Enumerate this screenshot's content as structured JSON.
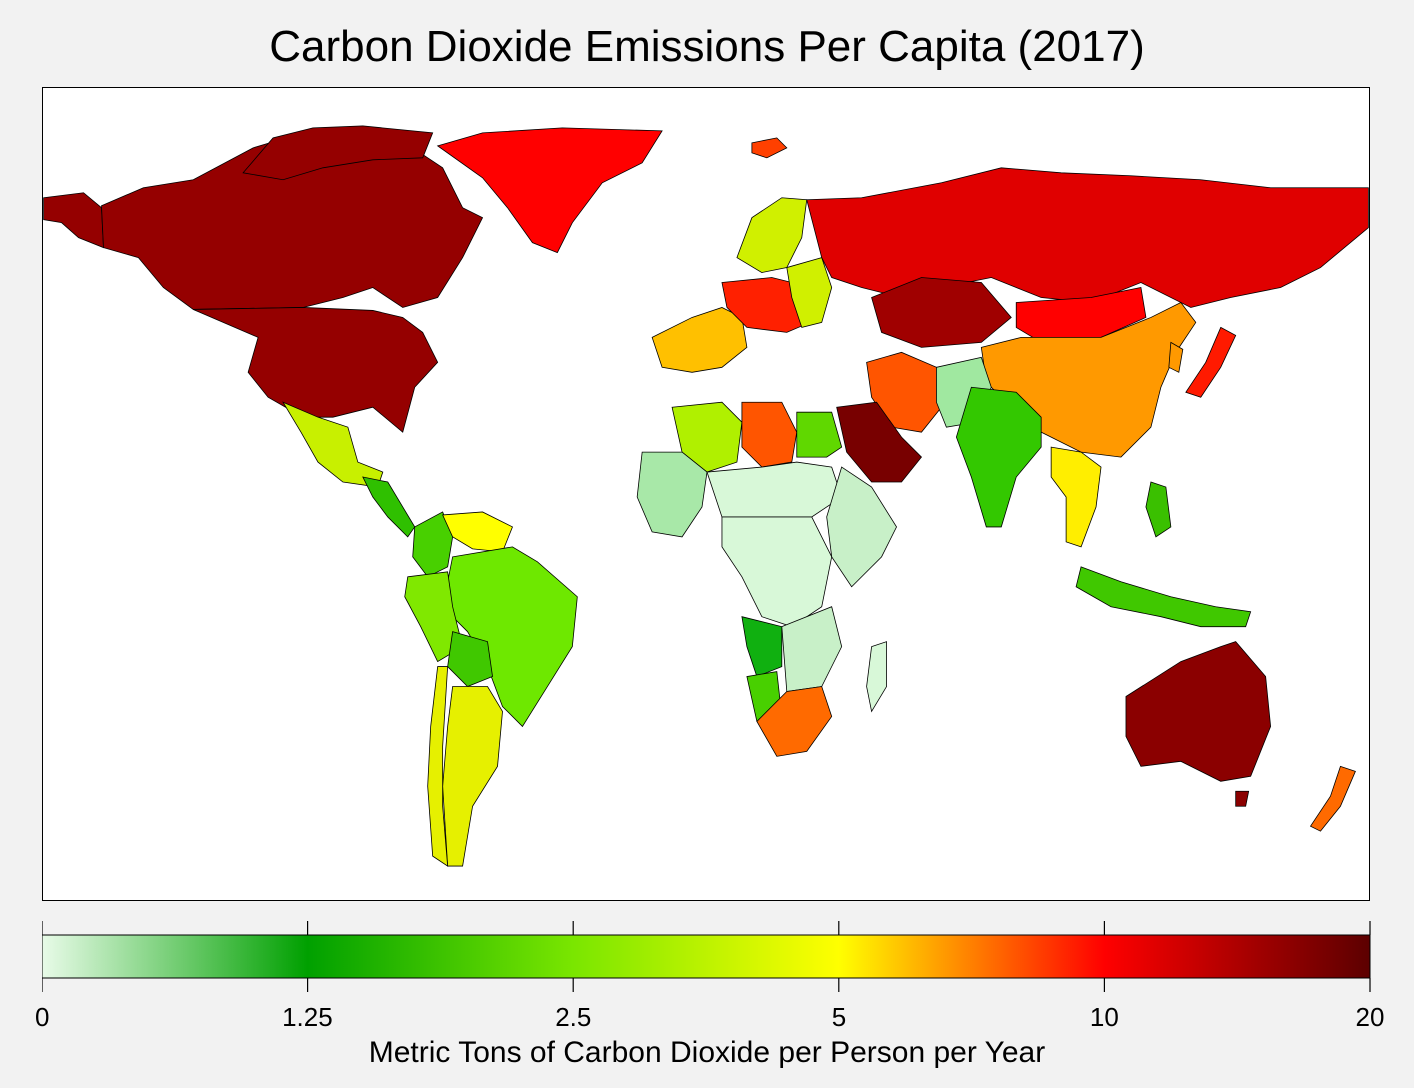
{
  "title": "Carbon Dioxide Emissions Per Capita (2017)",
  "legend": {
    "label": "Metric Tons of Carbon Dioxide per Person per Year",
    "ticks": [
      "0",
      "1.25",
      "2.5",
      "5",
      "10",
      "20"
    ],
    "stops": [
      {
        "pos": 0.0,
        "color": "#e8fbe8"
      },
      {
        "pos": 0.2,
        "color": "#00a000"
      },
      {
        "pos": 0.4,
        "color": "#7ae600"
      },
      {
        "pos": 0.6,
        "color": "#ffff00"
      },
      {
        "pos": 0.8,
        "color": "#ff0000"
      },
      {
        "pos": 1.0,
        "color": "#5c0000"
      }
    ]
  },
  "chart_data": {
    "type": "choropleth",
    "title": "Carbon Dioxide Emissions Per Capita (2017)",
    "legend_label": "Metric Tons of Carbon Dioxide per Person per Year",
    "scale": "log2",
    "scale_ticks": [
      0,
      1.25,
      2.5,
      5,
      10,
      20
    ],
    "regions": [
      {
        "name": "Canada",
        "color": "#950000"
      },
      {
        "name": "United States",
        "color": "#950000"
      },
      {
        "name": "Alaska",
        "color": "#950000"
      },
      {
        "name": "Greenland",
        "color": "#ff0000"
      },
      {
        "name": "Mexico",
        "color": "#c8f000"
      },
      {
        "name": "Central America",
        "color": "#2fc000"
      },
      {
        "name": "Venezuela",
        "color": "#ffff00"
      },
      {
        "name": "Colombia",
        "color": "#48d000"
      },
      {
        "name": "Brazil",
        "color": "#6ee800"
      },
      {
        "name": "Peru",
        "color": "#80e800"
      },
      {
        "name": "Bolivia",
        "color": "#40c800"
      },
      {
        "name": "Argentina",
        "color": "#e6f000"
      },
      {
        "name": "Chile",
        "color": "#e6f000"
      },
      {
        "name": "Iceland",
        "color": "#ff4000"
      },
      {
        "name": "Western Europe",
        "color": "#ffc000"
      },
      {
        "name": "Central Europe",
        "color": "#ff2000"
      },
      {
        "name": "Scandinavia",
        "color": "#d0f000"
      },
      {
        "name": "Russia",
        "color": "#e00000"
      },
      {
        "name": "Kazakhstan",
        "color": "#a00000"
      },
      {
        "name": "Mongolia",
        "color": "#ff0000"
      },
      {
        "name": "China",
        "color": "#ff9900"
      },
      {
        "name": "Japan",
        "color": "#ff1a00"
      },
      {
        "name": "India",
        "color": "#33c800"
      },
      {
        "name": "Pakistan",
        "color": "#a0e8a0"
      },
      {
        "name": "Iran",
        "color": "#ff5500"
      },
      {
        "name": "Saudi Arabia",
        "color": "#780000"
      },
      {
        "name": "Southeast Asia",
        "color": "#ffee00"
      },
      {
        "name": "Indonesia",
        "color": "#40c800"
      },
      {
        "name": "Philippines",
        "color": "#3ac000"
      },
      {
        "name": "Australia",
        "color": "#8b0000"
      },
      {
        "name": "New Zealand",
        "color": "#ff6a00"
      },
      {
        "name": "Algeria",
        "color": "#b0f000"
      },
      {
        "name": "Libya",
        "color": "#ff5500"
      },
      {
        "name": "Egypt",
        "color": "#60d800"
      },
      {
        "name": "Sahel",
        "color": "#d8f8d8"
      },
      {
        "name": "West Africa",
        "color": "#a8e8a8"
      },
      {
        "name": "Central Africa",
        "color": "#d8f8d8"
      },
      {
        "name": "East Africa",
        "color": "#c8f0c8"
      },
      {
        "name": "Angola",
        "color": "#10b010"
      },
      {
        "name": "Namibia",
        "color": "#48d000"
      },
      {
        "name": "South Africa",
        "color": "#ff6a00"
      },
      {
        "name": "Madagascar",
        "color": "#d8f8d8"
      }
    ]
  }
}
